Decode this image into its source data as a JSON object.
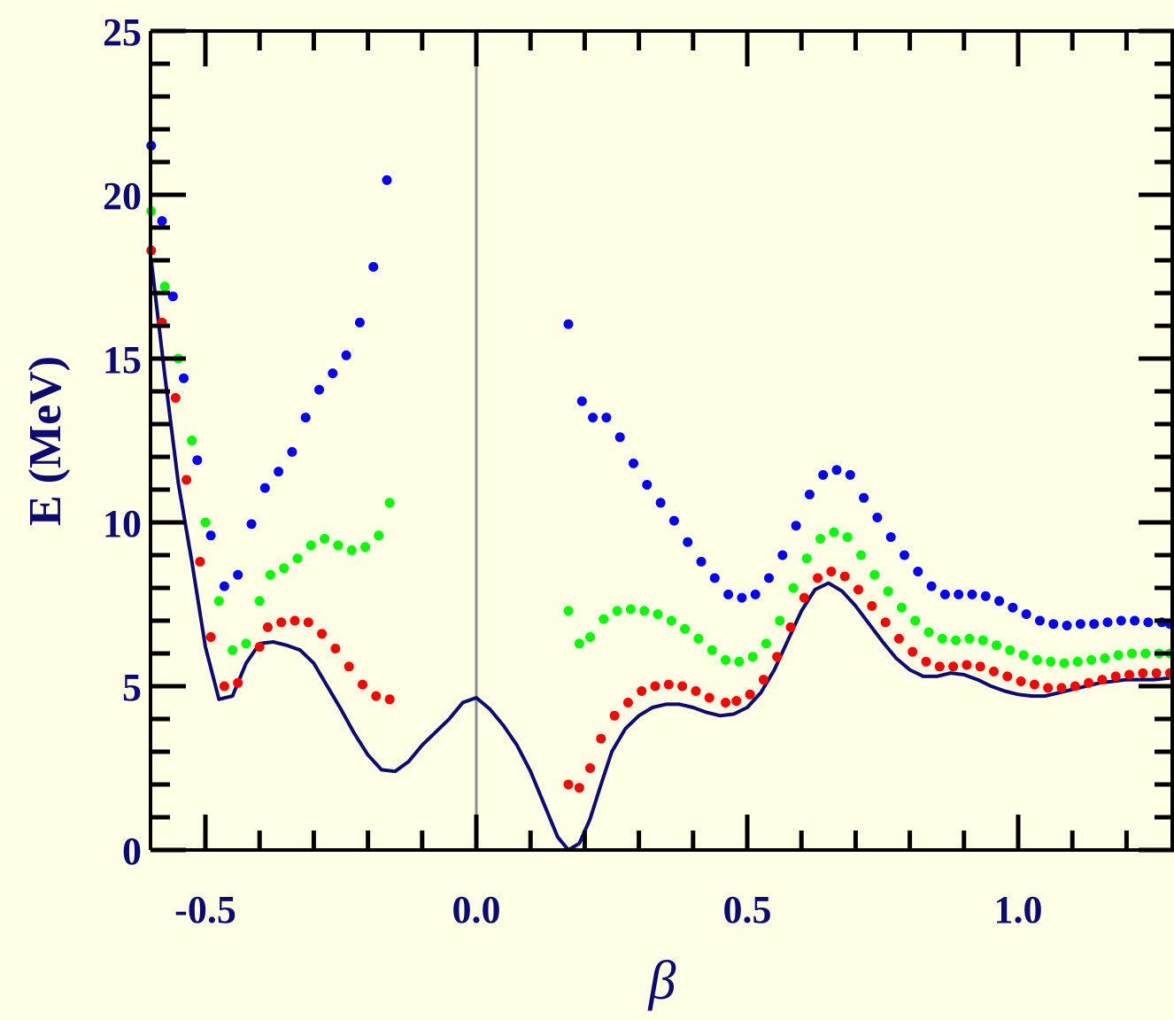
{
  "colors": {
    "background": "#ffffe6",
    "axis": "#000000",
    "text": "#0b0b73",
    "curve": "#0b0b73",
    "zero_line": "#8c8c8c"
  },
  "chart_data": {
    "type": "line",
    "xlabel": "β",
    "ylabel": "E (MeV)",
    "xlim": [
      -0.6,
      1.28
    ],
    "ylim": [
      0,
      25
    ],
    "x_ticks": [
      -0.5,
      0.0,
      0.5,
      1.0
    ],
    "x_tick_labels": [
      "-0.5",
      "0.0",
      "0.5",
      "1.0"
    ],
    "y_ticks": [
      0,
      5,
      10,
      15,
      20,
      25
    ],
    "y_tick_labels": [
      "0",
      "5",
      "10",
      "15",
      "20",
      "25"
    ],
    "grid": false,
    "legend": "none",
    "vertical_reference_line_x": 0.0,
    "series": [
      {
        "kind": "line",
        "color": "#0b0b73",
        "x": [
          -0.6,
          -0.575,
          -0.55,
          -0.525,
          -0.5,
          -0.475,
          -0.45,
          -0.425,
          -0.4,
          -0.375,
          -0.35,
          -0.325,
          -0.3,
          -0.275,
          -0.25,
          -0.225,
          -0.2,
          -0.175,
          -0.15,
          -0.125,
          -0.1,
          -0.075,
          -0.05,
          -0.025,
          0.0,
          0.025,
          0.05,
          0.075,
          0.1,
          0.125,
          0.15,
          0.17,
          0.19,
          0.21,
          0.23,
          0.25,
          0.275,
          0.3,
          0.325,
          0.35,
          0.375,
          0.4,
          0.425,
          0.45,
          0.475,
          0.5,
          0.525,
          0.55,
          0.575,
          0.6,
          0.625,
          0.65,
          0.675,
          0.7,
          0.725,
          0.75,
          0.775,
          0.8,
          0.825,
          0.85,
          0.875,
          0.9,
          0.925,
          0.95,
          0.975,
          1.0,
          1.025,
          1.05,
          1.075,
          1.1,
          1.125,
          1.15,
          1.175,
          1.2,
          1.225,
          1.25,
          1.28
        ],
        "values": [
          18.0,
          14.5,
          11.2,
          8.8,
          6.2,
          4.6,
          4.7,
          5.7,
          6.3,
          6.35,
          6.25,
          6.1,
          5.7,
          5.0,
          4.3,
          3.55,
          2.9,
          2.45,
          2.4,
          2.7,
          3.2,
          3.6,
          4.0,
          4.5,
          4.65,
          4.3,
          3.8,
          3.2,
          2.4,
          1.4,
          0.4,
          0.0,
          0.2,
          0.95,
          2.0,
          3.0,
          3.7,
          4.1,
          4.35,
          4.45,
          4.45,
          4.35,
          4.2,
          4.1,
          4.15,
          4.35,
          4.8,
          5.5,
          6.4,
          7.3,
          7.95,
          8.15,
          7.9,
          7.45,
          6.9,
          6.35,
          5.85,
          5.5,
          5.3,
          5.3,
          5.4,
          5.35,
          5.2,
          5.0,
          4.85,
          4.75,
          4.7,
          4.7,
          4.8,
          4.9,
          5.0,
          5.1,
          5.15,
          5.2,
          5.2,
          5.2,
          5.25
        ]
      },
      {
        "kind": "dots",
        "color": "#ff0000",
        "x": [
          -0.6,
          -0.58,
          -0.555,
          -0.535,
          -0.51,
          -0.49,
          -0.465,
          -0.44,
          -0.4,
          -0.385,
          -0.36,
          -0.335,
          -0.31,
          -0.285,
          -0.26,
          -0.235,
          -0.21,
          -0.185,
          -0.16,
          0.17,
          0.19,
          0.21,
          0.23,
          0.255,
          0.28,
          0.305,
          0.33,
          0.355,
          0.38,
          0.405,
          0.43,
          0.46,
          0.48,
          0.505,
          0.53,
          0.555,
          0.58,
          0.605,
          0.63,
          0.655,
          0.68,
          0.705,
          0.73,
          0.755,
          0.78,
          0.805,
          0.83,
          0.855,
          0.88,
          0.905,
          0.93,
          0.955,
          0.98,
          1.005,
          1.03,
          1.055,
          1.08,
          1.105,
          1.13,
          1.155,
          1.18,
          1.205,
          1.23,
          1.255,
          1.28
        ],
        "values": [
          18.3,
          16.1,
          13.8,
          11.3,
          8.8,
          6.5,
          5.0,
          5.1,
          6.2,
          6.8,
          6.95,
          7.0,
          6.95,
          6.6,
          6.15,
          5.6,
          5.05,
          4.7,
          4.6,
          2.0,
          1.9,
          2.5,
          3.4,
          4.1,
          4.5,
          4.85,
          5.0,
          5.05,
          5.0,
          4.85,
          4.65,
          4.5,
          4.55,
          4.75,
          5.2,
          5.9,
          6.8,
          7.7,
          8.3,
          8.5,
          8.35,
          7.95,
          7.45,
          6.95,
          6.45,
          6.05,
          5.75,
          5.6,
          5.6,
          5.65,
          5.6,
          5.45,
          5.3,
          5.15,
          5.05,
          4.95,
          4.95,
          5.0,
          5.1,
          5.2,
          5.3,
          5.35,
          5.4,
          5.4,
          5.4
        ]
      },
      {
        "kind": "dots",
        "color": "#00ff00",
        "x": [
          -0.6,
          -0.575,
          -0.55,
          -0.525,
          -0.5,
          -0.475,
          -0.45,
          -0.425,
          -0.4,
          -0.38,
          -0.355,
          -0.33,
          -0.305,
          -0.28,
          -0.255,
          -0.23,
          -0.205,
          -0.18,
          -0.16,
          0.17,
          0.19,
          0.21,
          0.235,
          0.26,
          0.285,
          0.31,
          0.335,
          0.36,
          0.385,
          0.41,
          0.435,
          0.46,
          0.485,
          0.51,
          0.535,
          0.56,
          0.585,
          0.61,
          0.635,
          0.66,
          0.685,
          0.71,
          0.735,
          0.76,
          0.785,
          0.81,
          0.835,
          0.86,
          0.885,
          0.91,
          0.935,
          0.96,
          0.985,
          1.01,
          1.035,
          1.06,
          1.085,
          1.11,
          1.135,
          1.16,
          1.185,
          1.21,
          1.235,
          1.26,
          1.28
        ],
        "values": [
          19.5,
          17.2,
          15.0,
          12.5,
          10.0,
          7.6,
          6.1,
          6.3,
          7.6,
          8.4,
          8.6,
          8.9,
          9.3,
          9.5,
          9.3,
          9.15,
          9.25,
          9.6,
          10.6,
          7.3,
          6.3,
          6.5,
          7.05,
          7.3,
          7.35,
          7.3,
          7.2,
          7.0,
          6.75,
          6.45,
          6.1,
          5.8,
          5.75,
          5.9,
          6.3,
          7.0,
          8.0,
          8.9,
          9.5,
          9.7,
          9.55,
          9.0,
          8.4,
          7.9,
          7.4,
          7.0,
          6.65,
          6.45,
          6.4,
          6.45,
          6.4,
          6.25,
          6.1,
          5.95,
          5.8,
          5.75,
          5.7,
          5.75,
          5.8,
          5.85,
          5.95,
          6.0,
          6.0,
          6.0,
          6.0
        ]
      },
      {
        "kind": "dots",
        "color": "#0000ff",
        "x": [
          -0.6,
          -0.58,
          -0.56,
          -0.54,
          -0.515,
          -0.49,
          -0.465,
          -0.44,
          -0.415,
          -0.39,
          -0.365,
          -0.34,
          -0.315,
          -0.29,
          -0.265,
          -0.24,
          -0.215,
          -0.19,
          -0.165,
          0.17,
          0.195,
          0.215,
          0.24,
          0.265,
          0.29,
          0.315,
          0.34,
          0.365,
          0.39,
          0.415,
          0.44,
          0.465,
          0.49,
          0.515,
          0.54,
          0.565,
          0.59,
          0.615,
          0.64,
          0.665,
          0.69,
          0.715,
          0.74,
          0.765,
          0.79,
          0.815,
          0.84,
          0.865,
          0.89,
          0.915,
          0.94,
          0.965,
          0.99,
          1.015,
          1.04,
          1.065,
          1.09,
          1.115,
          1.14,
          1.165,
          1.19,
          1.215,
          1.24,
          1.265,
          1.28
        ],
        "values": [
          21.5,
          19.2,
          16.9,
          14.4,
          11.9,
          9.6,
          8.05,
          8.4,
          9.95,
          11.05,
          11.55,
          12.15,
          13.2,
          14.05,
          14.55,
          15.1,
          16.1,
          17.8,
          20.45,
          16.05,
          13.7,
          13.2,
          13.2,
          12.6,
          11.8,
          11.15,
          10.6,
          10.05,
          9.4,
          8.8,
          8.3,
          7.8,
          7.7,
          7.8,
          8.3,
          9.0,
          9.9,
          10.85,
          11.45,
          11.6,
          11.45,
          10.75,
          10.15,
          9.55,
          9.0,
          8.5,
          8.05,
          7.8,
          7.8,
          7.8,
          7.75,
          7.6,
          7.4,
          7.2,
          7.0,
          6.9,
          6.85,
          6.9,
          6.9,
          6.95,
          7.0,
          7.0,
          6.95,
          6.95,
          6.9
        ]
      }
    ]
  }
}
